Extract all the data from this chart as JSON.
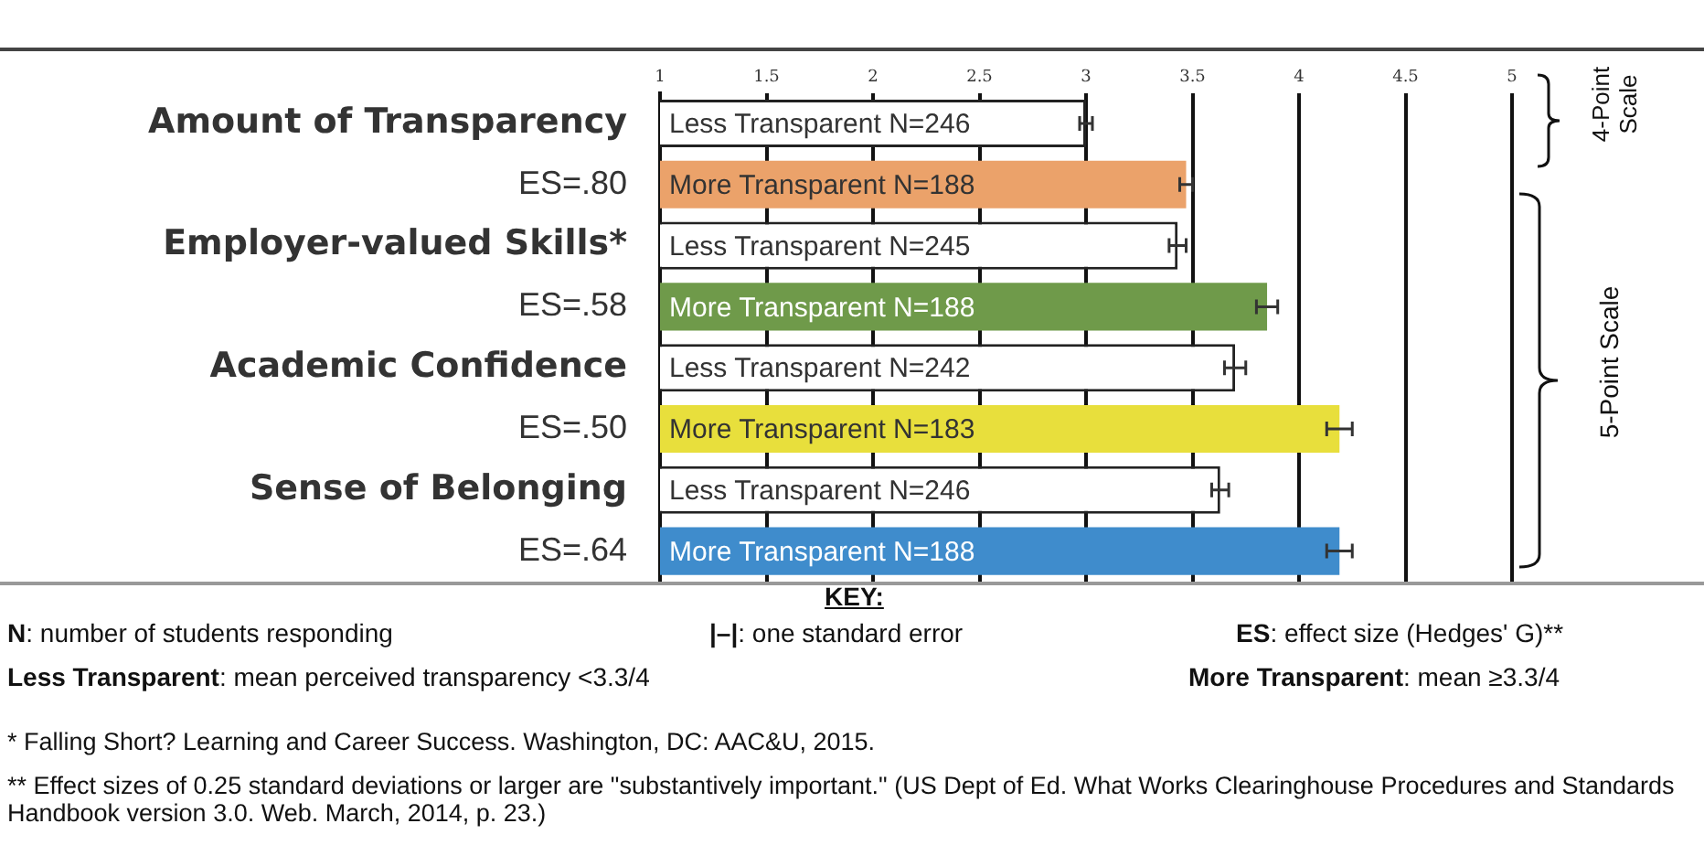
{
  "chart_data": {
    "type": "bar",
    "orientation": "horizontal",
    "categories": [
      "Less Transparent N=246",
      "More Transparent N=188",
      "Less Transparent N=245",
      "More Transparent N=188",
      "Less Transparent N=242",
      "More Transparent N=183",
      "Less Transparent N=246",
      "More Transparent N=188"
    ],
    "values": [
      3.0,
      3.47,
      3.43,
      3.85,
      3.7,
      4.19,
      3.63,
      4.19
    ],
    "colors": [
      "#ffffff",
      "#eba26a",
      "#ffffff",
      "#6f9a4a",
      "#ffffff",
      "#e8df3c",
      "#ffffff",
      "#3f8ccc"
    ],
    "errors": [
      0.03,
      0.03,
      0.04,
      0.05,
      0.05,
      0.06,
      0.04,
      0.06
    ],
    "xlim": [
      1,
      5
    ],
    "xticks": [
      1,
      1.5,
      2,
      2.5,
      3,
      3.5,
      4,
      4.5,
      5
    ],
    "grid": "x",
    "legend": false,
    "annotations": [
      "Amount of Transparency\nES=.80",
      "Employer-valued Skills*\nES=.58",
      "Academic Confidence\nES=.50",
      "Sense of Belonging\nES=.64",
      "4-Point Scale",
      "5-Point Scale",
      "KEY:",
      "N: number of students responding",
      "|–|: one standard error",
      "ES: effect size (Hedges' G)**",
      "Less Transparent: mean perceived transparency <3.3/4",
      "More Transparent: mean ≥3.3/4",
      "* Falling Short? Learning and Career Success. Washington, DC: AAC&U, 2015.",
      "** Effect sizes of 0.25 standard deviations or larger are \"substantively important.\" (US Dept of Ed. What Works Clearinghouse Procedures and Standards Handbook version 3.0. Web. March, 2014, p. 23.)"
    ]
  }
}
